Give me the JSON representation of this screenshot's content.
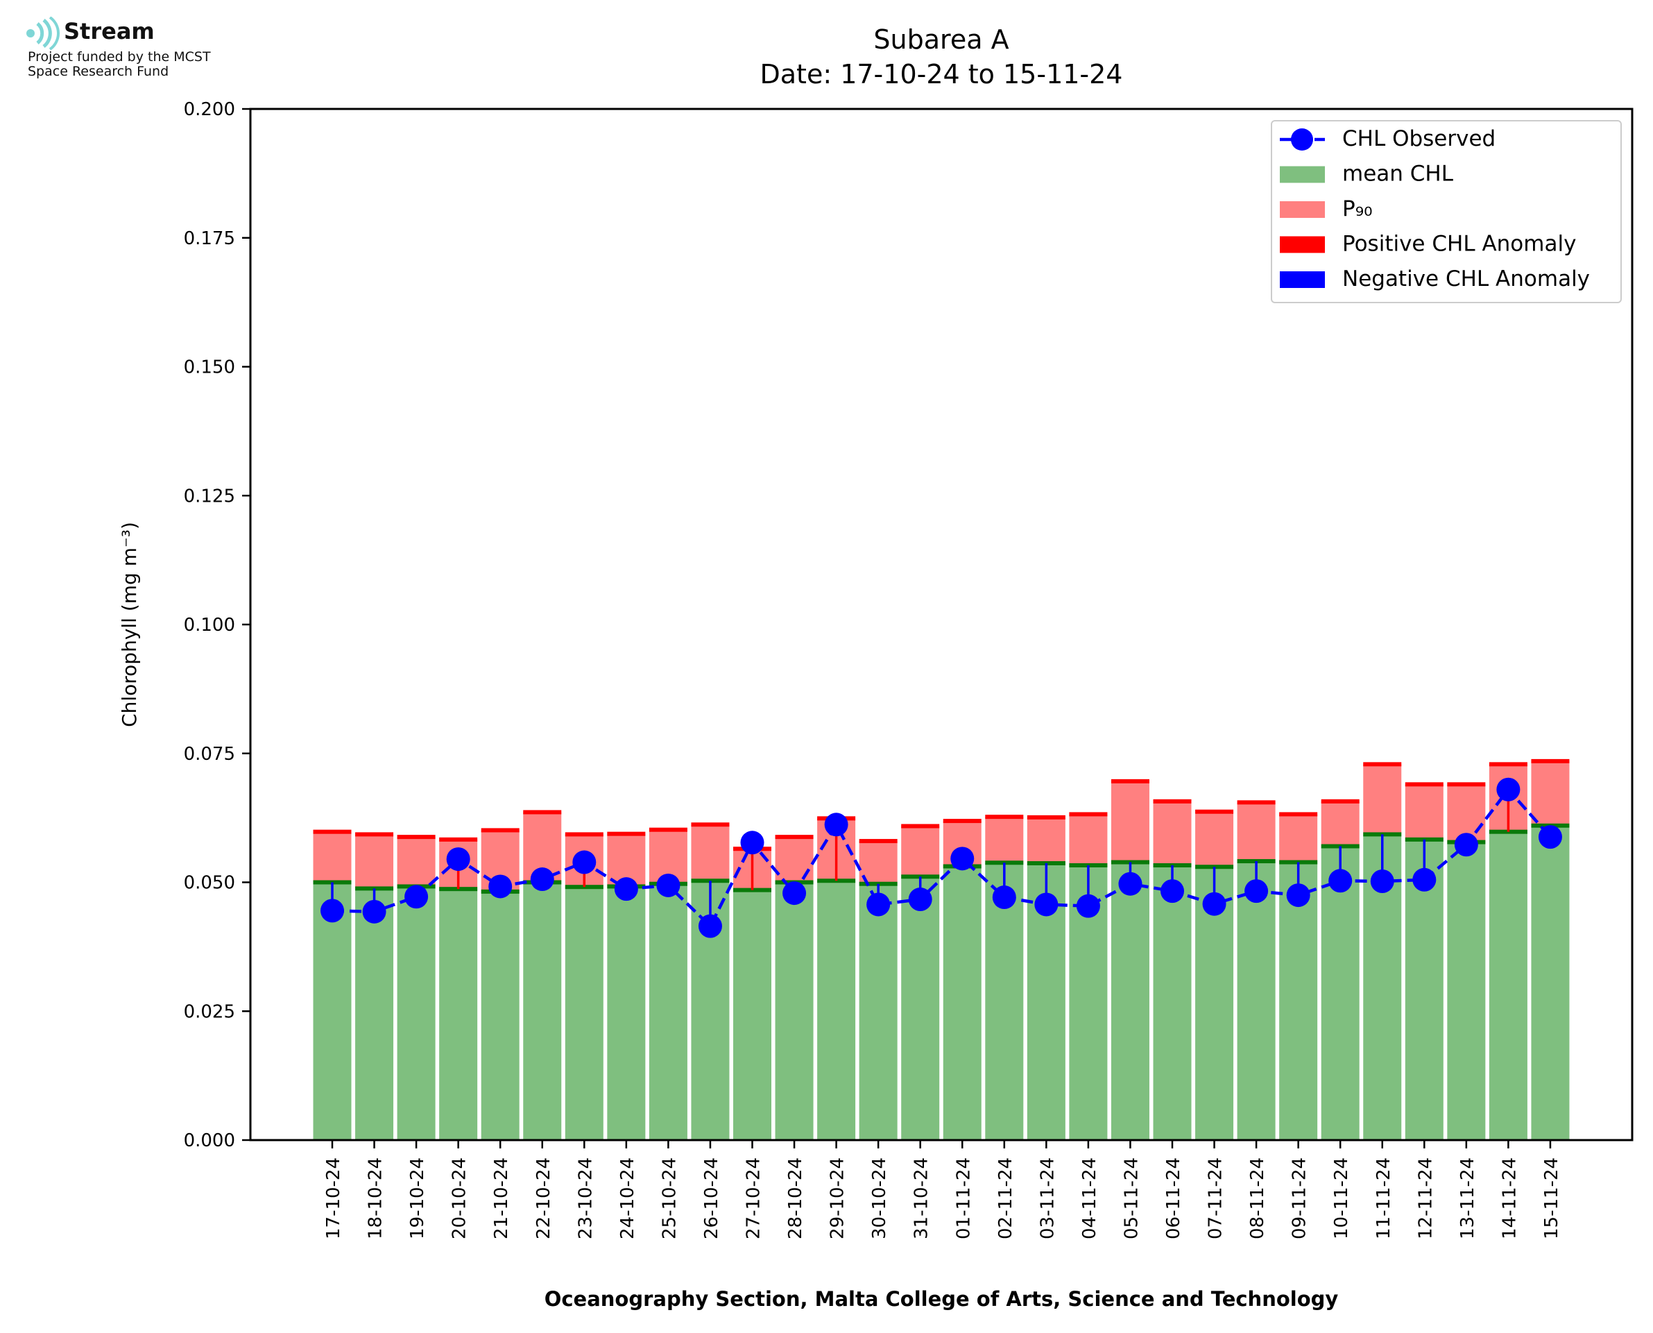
{
  "header": {
    "brand": "Stream",
    "fund_line1": "Project funded by the MCST",
    "fund_line2": "Space Research Fund"
  },
  "chart_data": {
    "type": "bar",
    "title": "Subarea A",
    "subtitle": "Date: 17-10-24 to 15-11-24",
    "xlabel": "Oceanography Section, Malta College of Arts, Science and Technology",
    "ylabel": "Chlorophyll (mg m⁻³)",
    "ylim": [
      0,
      0.2
    ],
    "yticks": [
      "0.000",
      "0.025",
      "0.050",
      "0.075",
      "0.100",
      "0.125",
      "0.150",
      "0.175",
      "0.200"
    ],
    "categories": [
      "17-10-24",
      "18-10-24",
      "19-10-24",
      "20-10-24",
      "21-10-24",
      "22-10-24",
      "23-10-24",
      "24-10-24",
      "25-10-24",
      "26-10-24",
      "27-10-24",
      "28-10-24",
      "29-10-24",
      "30-10-24",
      "31-10-24",
      "01-11-24",
      "02-11-24",
      "03-11-24",
      "04-11-24",
      "05-11-24",
      "06-11-24",
      "07-11-24",
      "08-11-24",
      "09-11-24",
      "10-11-24",
      "11-11-24",
      "12-11-24",
      "13-11-24",
      "14-11-24",
      "15-11-24"
    ],
    "series": [
      {
        "name": "CHL Observed",
        "type": "line",
        "color": "#0000ff",
        "values": [
          0.0445,
          0.0443,
          0.0472,
          0.0545,
          0.0492,
          0.0506,
          0.0539,
          0.0487,
          0.0494,
          0.0415,
          0.0577,
          0.0479,
          0.0612,
          0.0457,
          0.0467,
          0.0546,
          0.0471,
          0.0457,
          0.0454,
          0.0497,
          0.0483,
          0.0458,
          0.0483,
          0.0475,
          0.0503,
          0.0502,
          0.0505,
          0.0573,
          0.068,
          0.0588
        ]
      },
      {
        "name": "mean CHL",
        "type": "bar",
        "color": "#7fbf7f",
        "values": [
          0.05,
          0.0488,
          0.0492,
          0.0487,
          0.0482,
          0.05,
          0.0491,
          0.0492,
          0.0497,
          0.0503,
          0.0485,
          0.05,
          0.0503,
          0.0497,
          0.0511,
          0.0531,
          0.0538,
          0.0537,
          0.0533,
          0.0539,
          0.0533,
          0.053,
          0.0541,
          0.0539,
          0.057,
          0.0593,
          0.0583,
          0.0578,
          0.0598,
          0.061
        ]
      },
      {
        "name": "P₉₀",
        "type": "bar",
        "color": "#ff8080",
        "values": [
          0.0598,
          0.0593,
          0.0588,
          0.0583,
          0.0601,
          0.0636,
          0.0593,
          0.0594,
          0.0602,
          0.0612,
          0.0565,
          0.0588,
          0.0624,
          0.058,
          0.0609,
          0.0619,
          0.0627,
          0.0626,
          0.0632,
          0.0696,
          0.0657,
          0.0637,
          0.0655,
          0.0632,
          0.0657,
          0.0729,
          0.069,
          0.069,
          0.0729,
          0.0735
        ]
      },
      {
        "name": "Positive CHL Anomaly",
        "type": "marker",
        "color": "#ff0000"
      },
      {
        "name": "Negative CHL Anomaly",
        "type": "marker",
        "color": "#0000ff"
      }
    ],
    "legend": "top-right",
    "grid": false
  }
}
